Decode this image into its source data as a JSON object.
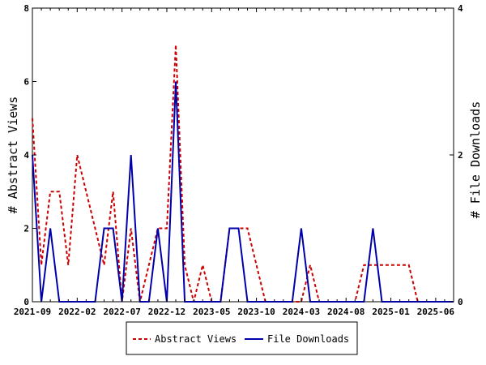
{
  "chart_data": {
    "type": "line",
    "title": "",
    "xlabel": "",
    "ylabel": "# Abstract Views",
    "y2label": "# File Downloads",
    "ylim": [
      0,
      8
    ],
    "y2lim": [
      0,
      4
    ],
    "yticks": [
      "0",
      "2",
      "4",
      "6",
      "8"
    ],
    "y2ticks": [
      "0",
      "2",
      "4"
    ],
    "x": [
      "2021-09",
      "2021-10",
      "2021-11",
      "2021-12",
      "2022-01",
      "2022-02",
      "2022-03",
      "2022-04",
      "2022-05",
      "2022-06",
      "2022-07",
      "2022-08",
      "2022-09",
      "2022-10",
      "2022-11",
      "2022-12",
      "2023-01",
      "2023-02",
      "2023-03",
      "2023-04",
      "2023-05",
      "2023-06",
      "2023-07",
      "2023-08",
      "2023-09",
      "2023-10",
      "2023-11",
      "2023-12",
      "2024-01",
      "2024-02",
      "2024-03",
      "2024-04",
      "2024-05",
      "2024-06",
      "2024-07",
      "2024-08",
      "2024-09",
      "2024-10",
      "2024-11",
      "2024-12",
      "2025-01",
      "2025-02",
      "2025-03",
      "2025-04",
      "2025-05",
      "2025-06",
      "2025-07",
      "2025-08"
    ],
    "xticks": [
      "2021-09",
      "2022-02",
      "2022-07",
      "2022-12",
      "2023-05",
      "2023-10",
      "2024-03",
      "2024-08",
      "2025-01",
      "2025-06"
    ],
    "series": [
      {
        "name": "Abstract Views",
        "axis": "left",
        "color": "#cc0000",
        "dash": "dashed",
        "values": [
          5,
          1,
          3,
          3,
          1,
          4,
          3,
          2,
          1,
          3,
          0,
          2,
          0,
          1,
          2,
          2,
          7,
          1,
          0,
          1,
          0,
          0,
          2,
          2,
          2,
          1,
          0,
          0,
          0,
          0,
          0,
          1,
          0,
          0,
          0,
          0,
          0,
          1,
          1,
          1,
          1,
          1,
          1,
          0,
          0,
          0,
          0,
          0
        ]
      },
      {
        "name": "File Downloads",
        "axis": "right",
        "color": "#0000aa",
        "dash": "solid",
        "values": [
          2,
          0,
          1,
          0,
          0,
          0,
          0,
          0,
          1,
          1,
          0,
          2,
          0,
          0,
          1,
          0,
          3,
          0,
          0,
          0,
          0,
          0,
          1,
          1,
          0,
          0,
          0,
          0,
          0,
          0,
          1,
          0,
          0,
          0,
          0,
          0,
          0,
          0,
          1,
          0,
          0,
          0,
          0,
          0,
          0,
          0,
          0,
          0
        ]
      }
    ],
    "legend": {
      "position": "bottom"
    }
  }
}
